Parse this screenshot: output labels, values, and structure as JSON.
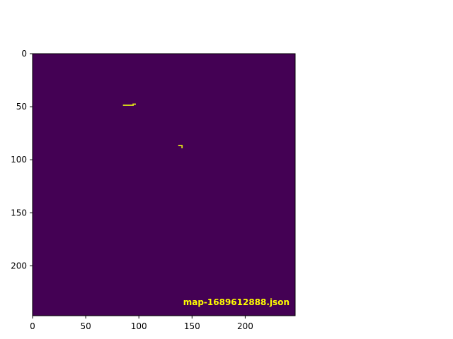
{
  "chart_data": {
    "type": "heatmap",
    "title": "",
    "xlabel": "",
    "ylabel": "",
    "xlim": [
      0,
      247
    ],
    "ylim": [
      247,
      0
    ],
    "grid": false,
    "background_color": "#440154",
    "highlight_color": "#dde318",
    "overlay_text_color": "#ffff00",
    "x_ticks": [
      0,
      50,
      100,
      150,
      200
    ],
    "y_ticks": [
      0,
      50,
      100,
      150,
      200
    ],
    "overlay_text": "map-1689612888.json",
    "highlight_cells": [
      {
        "x": 85,
        "y": 48
      },
      {
        "x": 86,
        "y": 48
      },
      {
        "x": 87,
        "y": 48
      },
      {
        "x": 88,
        "y": 48
      },
      {
        "x": 89,
        "y": 48
      },
      {
        "x": 90,
        "y": 48
      },
      {
        "x": 91,
        "y": 48
      },
      {
        "x": 92,
        "y": 48
      },
      {
        "x": 93,
        "y": 48
      },
      {
        "x": 94,
        "y": 48
      },
      {
        "x": 94,
        "y": 47
      },
      {
        "x": 95,
        "y": 47
      },
      {
        "x": 96,
        "y": 47
      },
      {
        "x": 137,
        "y": 86
      },
      {
        "x": 138,
        "y": 86
      },
      {
        "x": 139,
        "y": 86
      },
      {
        "x": 140,
        "y": 86
      },
      {
        "x": 140,
        "y": 87
      },
      {
        "x": 140,
        "y": 88
      }
    ]
  }
}
